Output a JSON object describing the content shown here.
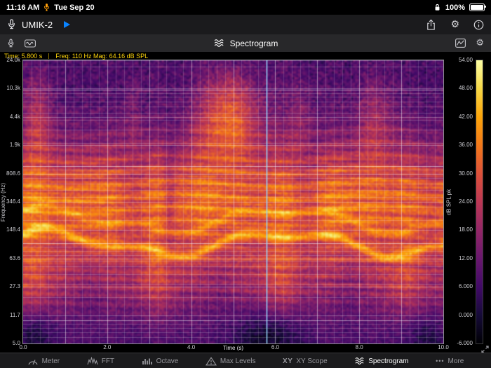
{
  "status_bar": {
    "time": "11:16 AM",
    "date": "Tue Sep 20",
    "battery_percent": "100%"
  },
  "title_bar": {
    "device_name": "UMIK-2"
  },
  "toolbar": {
    "title": "Spectrogram"
  },
  "info_bar": {
    "time_readout": "Time: 5.800 s",
    "freq_readout": "Freq: 110 Hz Mag: 64.16 dB SPL"
  },
  "chart_data": {
    "type": "heatmap",
    "title": "Spectrogram",
    "xlabel": "Time (s)",
    "ylabel": "Frequency (Hz)",
    "colorbar_label": "dB SPL pk",
    "x_range_s": [
      0,
      10
    ],
    "x_ticks": [
      "0.0",
      "2.0",
      "4.0",
      "6.0",
      "8.0",
      "10.0"
    ],
    "y_ticks": [
      "24.0k",
      "10.3k",
      "4.4k",
      "1.9k",
      "808.6",
      "346.4",
      "148.4",
      "63.6",
      "27.3",
      "11.7",
      "5.0"
    ],
    "freq_range_hz": [
      5,
      24000
    ],
    "colorbar_ticks": [
      "54.00",
      "48.00",
      "42.00",
      "36.00",
      "30.00",
      "24.00",
      "18.00",
      "12.00",
      "6.000",
      "0.000",
      "-6.000"
    ],
    "db_range": [
      -6,
      54
    ],
    "cursor_time_s": 5.8,
    "cursor_readout": {
      "time_s": 5.8,
      "freq_hz": 110,
      "mag_db_spl": 64.16
    },
    "colormap": "inferno",
    "colormap_stops": [
      [
        0.0,
        "#000004"
      ],
      [
        0.1,
        "#160b39"
      ],
      [
        0.2,
        "#420a68"
      ],
      [
        0.3,
        "#6a176e"
      ],
      [
        0.4,
        "#932667"
      ],
      [
        0.5,
        "#bc3754"
      ],
      [
        0.6,
        "#dd513a"
      ],
      [
        0.7,
        "#f37819"
      ],
      [
        0.8,
        "#fca50a"
      ],
      [
        0.9,
        "#f6d746"
      ],
      [
        1.0,
        "#fcffa4"
      ]
    ],
    "grid": {
      "x_minor_step_s": 0.2,
      "x_major_step_s": 1.0,
      "y_log_grid": true
    }
  },
  "tab_bar": {
    "items": [
      "Meter",
      "FFT",
      "Octave",
      "Max Levels",
      "XY Scope",
      "Spectrogram"
    ],
    "active": "Spectrogram",
    "more": "More"
  },
  "colors": {
    "accent_yellow": "#ffd60a",
    "accent_blue": "#0a84ff",
    "cursor": "#96d7ff",
    "mic_active_orange": "#ff9f0a"
  }
}
